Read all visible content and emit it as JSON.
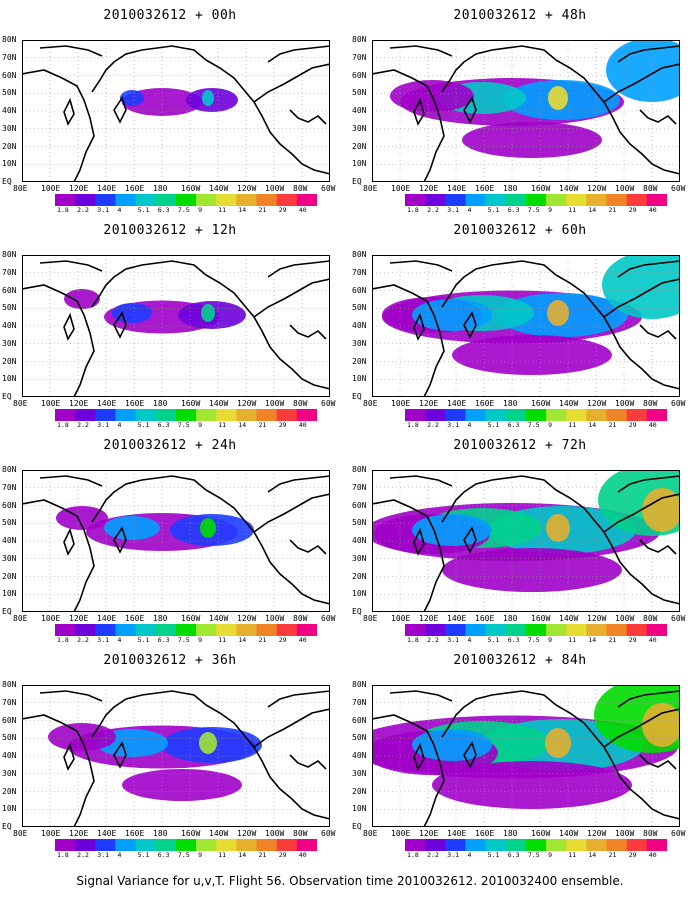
{
  "panels": [
    {
      "title": "2010032612 + 00h",
      "level": 0
    },
    {
      "title": "2010032612 + 12h",
      "level": 1
    },
    {
      "title": "2010032612 + 24h",
      "level": 2
    },
    {
      "title": "2010032612 + 36h",
      "level": 3
    },
    {
      "title": "2010032612 + 48h",
      "level": 4
    },
    {
      "title": "2010032612 + 60h",
      "level": 5
    },
    {
      "title": "2010032612 + 72h",
      "level": 6
    },
    {
      "title": "2010032612 + 84h",
      "level": 7
    }
  ],
  "lat_labels": [
    "80N",
    "70N",
    "60N",
    "50N",
    "40N",
    "30N",
    "20N",
    "10N",
    "EQ"
  ],
  "lon_labels": [
    "80E",
    "100E",
    "120E",
    "140E",
    "160E",
    "180",
    "160W",
    "140W",
    "120W",
    "100W",
    "80W",
    "60W"
  ],
  "colorbar": {
    "labels": [
      "1.8",
      "2.2",
      "3.1",
      "4",
      "5.1",
      "6.3",
      "7.5",
      "9",
      "11",
      "14",
      "21",
      "29",
      "40"
    ],
    "colors": [
      "#a000c8",
      "#6e00dc",
      "#1e3cff",
      "#00a0ff",
      "#00c8c8",
      "#00d28c",
      "#00dc00",
      "#a0e632",
      "#e6dc32",
      "#e6af2d",
      "#f08228",
      "#fa3c3c",
      "#f00082"
    ]
  },
  "footer": "Signal Variance for u,v,T. Flight 56. Observation time 2010032612. 2010032400 ensemble."
}
